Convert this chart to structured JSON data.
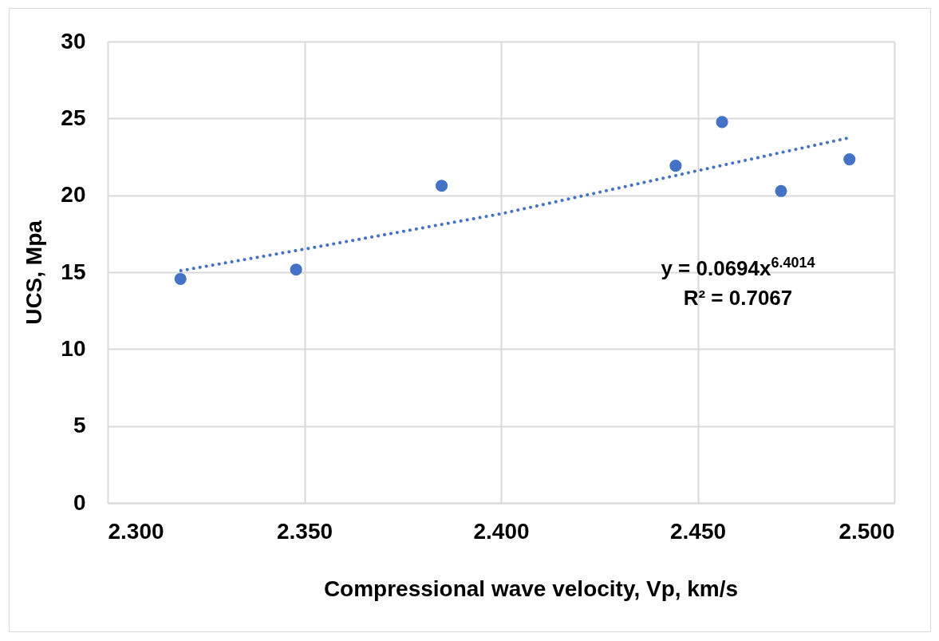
{
  "chart_data": {
    "type": "scatter",
    "xlabel": "Compressional wave velocity, Vp, km/s",
    "ylabel": "UCS, Mpa",
    "annotations": [
      "y = 0.0694x$^{6.4014}$",
      "R² = 0.7067"
    ],
    "series": [
      {
        "color": "#4472c4",
        "marker": "circle",
        "x": [
          2.3185,
          2.3479,
          2.3849,
          2.4444,
          2.4562,
          2.4712,
          2.4886
        ],
        "values": [
          14.56,
          15.17,
          20.62,
          21.92,
          24.76,
          20.28,
          22.34
        ]
      },
      {
        "type": "line",
        "color": "#4472c4",
        "line_style": "dotted",
        "x": [
          2.3186,
          2.35,
          2.4,
          2.45,
          2.4878
        ],
        "values": [
          15.1,
          16.5,
          18.8,
          21.6,
          23.7
        ]
      }
    ],
    "xlim": [
      2.3,
      2.5
    ],
    "xticks": [
      {
        "value": 2.3,
        "label": "2.300"
      },
      {
        "value": 2.35,
        "label": "2.350"
      },
      {
        "value": 2.4,
        "label": "2.400"
      },
      {
        "value": 2.45,
        "label": "2.450"
      },
      {
        "value": 2.5,
        "label": "2.500"
      }
    ],
    "ylim": [
      0,
      30
    ],
    "yticks": [
      0,
      5,
      10,
      15,
      20,
      25,
      30
    ],
    "grid": true
  }
}
